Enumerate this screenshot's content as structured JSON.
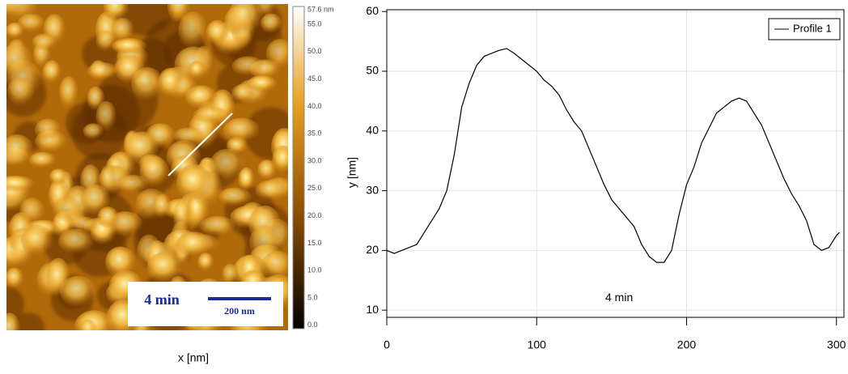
{
  "afm_image": {
    "caption": "4 min",
    "scale_bar": "200 nm",
    "colorbar_labels": [
      "57.6 nm",
      "55.0",
      "50.0",
      "45.0",
      "40.0",
      "35.0",
      "30.0",
      "25.0",
      "20.0",
      "15.0",
      "10.0",
      "5.0",
      "0.0"
    ]
  },
  "chart_data": {
    "type": "line",
    "xlabel": "x [nm]",
    "ylabel": "y [nm]",
    "annotation": "4 min",
    "xlim": [
      0,
      305
    ],
    "ylim": [
      8.8,
      60.3
    ],
    "xticks": [
      0,
      100,
      200,
      300
    ],
    "yticks": [
      10,
      20,
      30,
      40,
      50,
      60
    ],
    "grid": true,
    "legend": "upper right",
    "series": [
      {
        "name": "Profile 1",
        "color": "#000000",
        "x": [
          0,
          5,
          10,
          15,
          20,
          25,
          30,
          35,
          40,
          45,
          50,
          55,
          60,
          65,
          70,
          75,
          80,
          85,
          90,
          95,
          100,
          105,
          110,
          115,
          120,
          125,
          130,
          135,
          140,
          145,
          150,
          155,
          160,
          165,
          170,
          175,
          180,
          185,
          190,
          195,
          200,
          205,
          210,
          215,
          220,
          225,
          230,
          235,
          240,
          245,
          250,
          255,
          260,
          265,
          270,
          275,
          280,
          285,
          290,
          295,
          300,
          302
        ],
        "values": [
          20,
          19.5,
          20,
          20.5,
          21,
          23,
          25,
          27,
          30,
          36,
          44,
          48,
          51,
          52.5,
          53,
          53.5,
          53.8,
          53,
          52,
          51,
          50,
          48.5,
          47.5,
          46,
          43.5,
          41.5,
          40,
          37,
          34,
          31,
          28.5,
          27,
          25.5,
          24,
          21,
          19,
          18,
          18,
          20,
          26,
          31,
          34,
          38,
          40.5,
          43,
          44,
          45,
          45.5,
          45,
          43,
          41,
          38,
          35,
          32,
          29.5,
          27.5,
          25,
          21,
          20,
          20.5,
          22.5,
          23
        ]
      }
    ]
  }
}
